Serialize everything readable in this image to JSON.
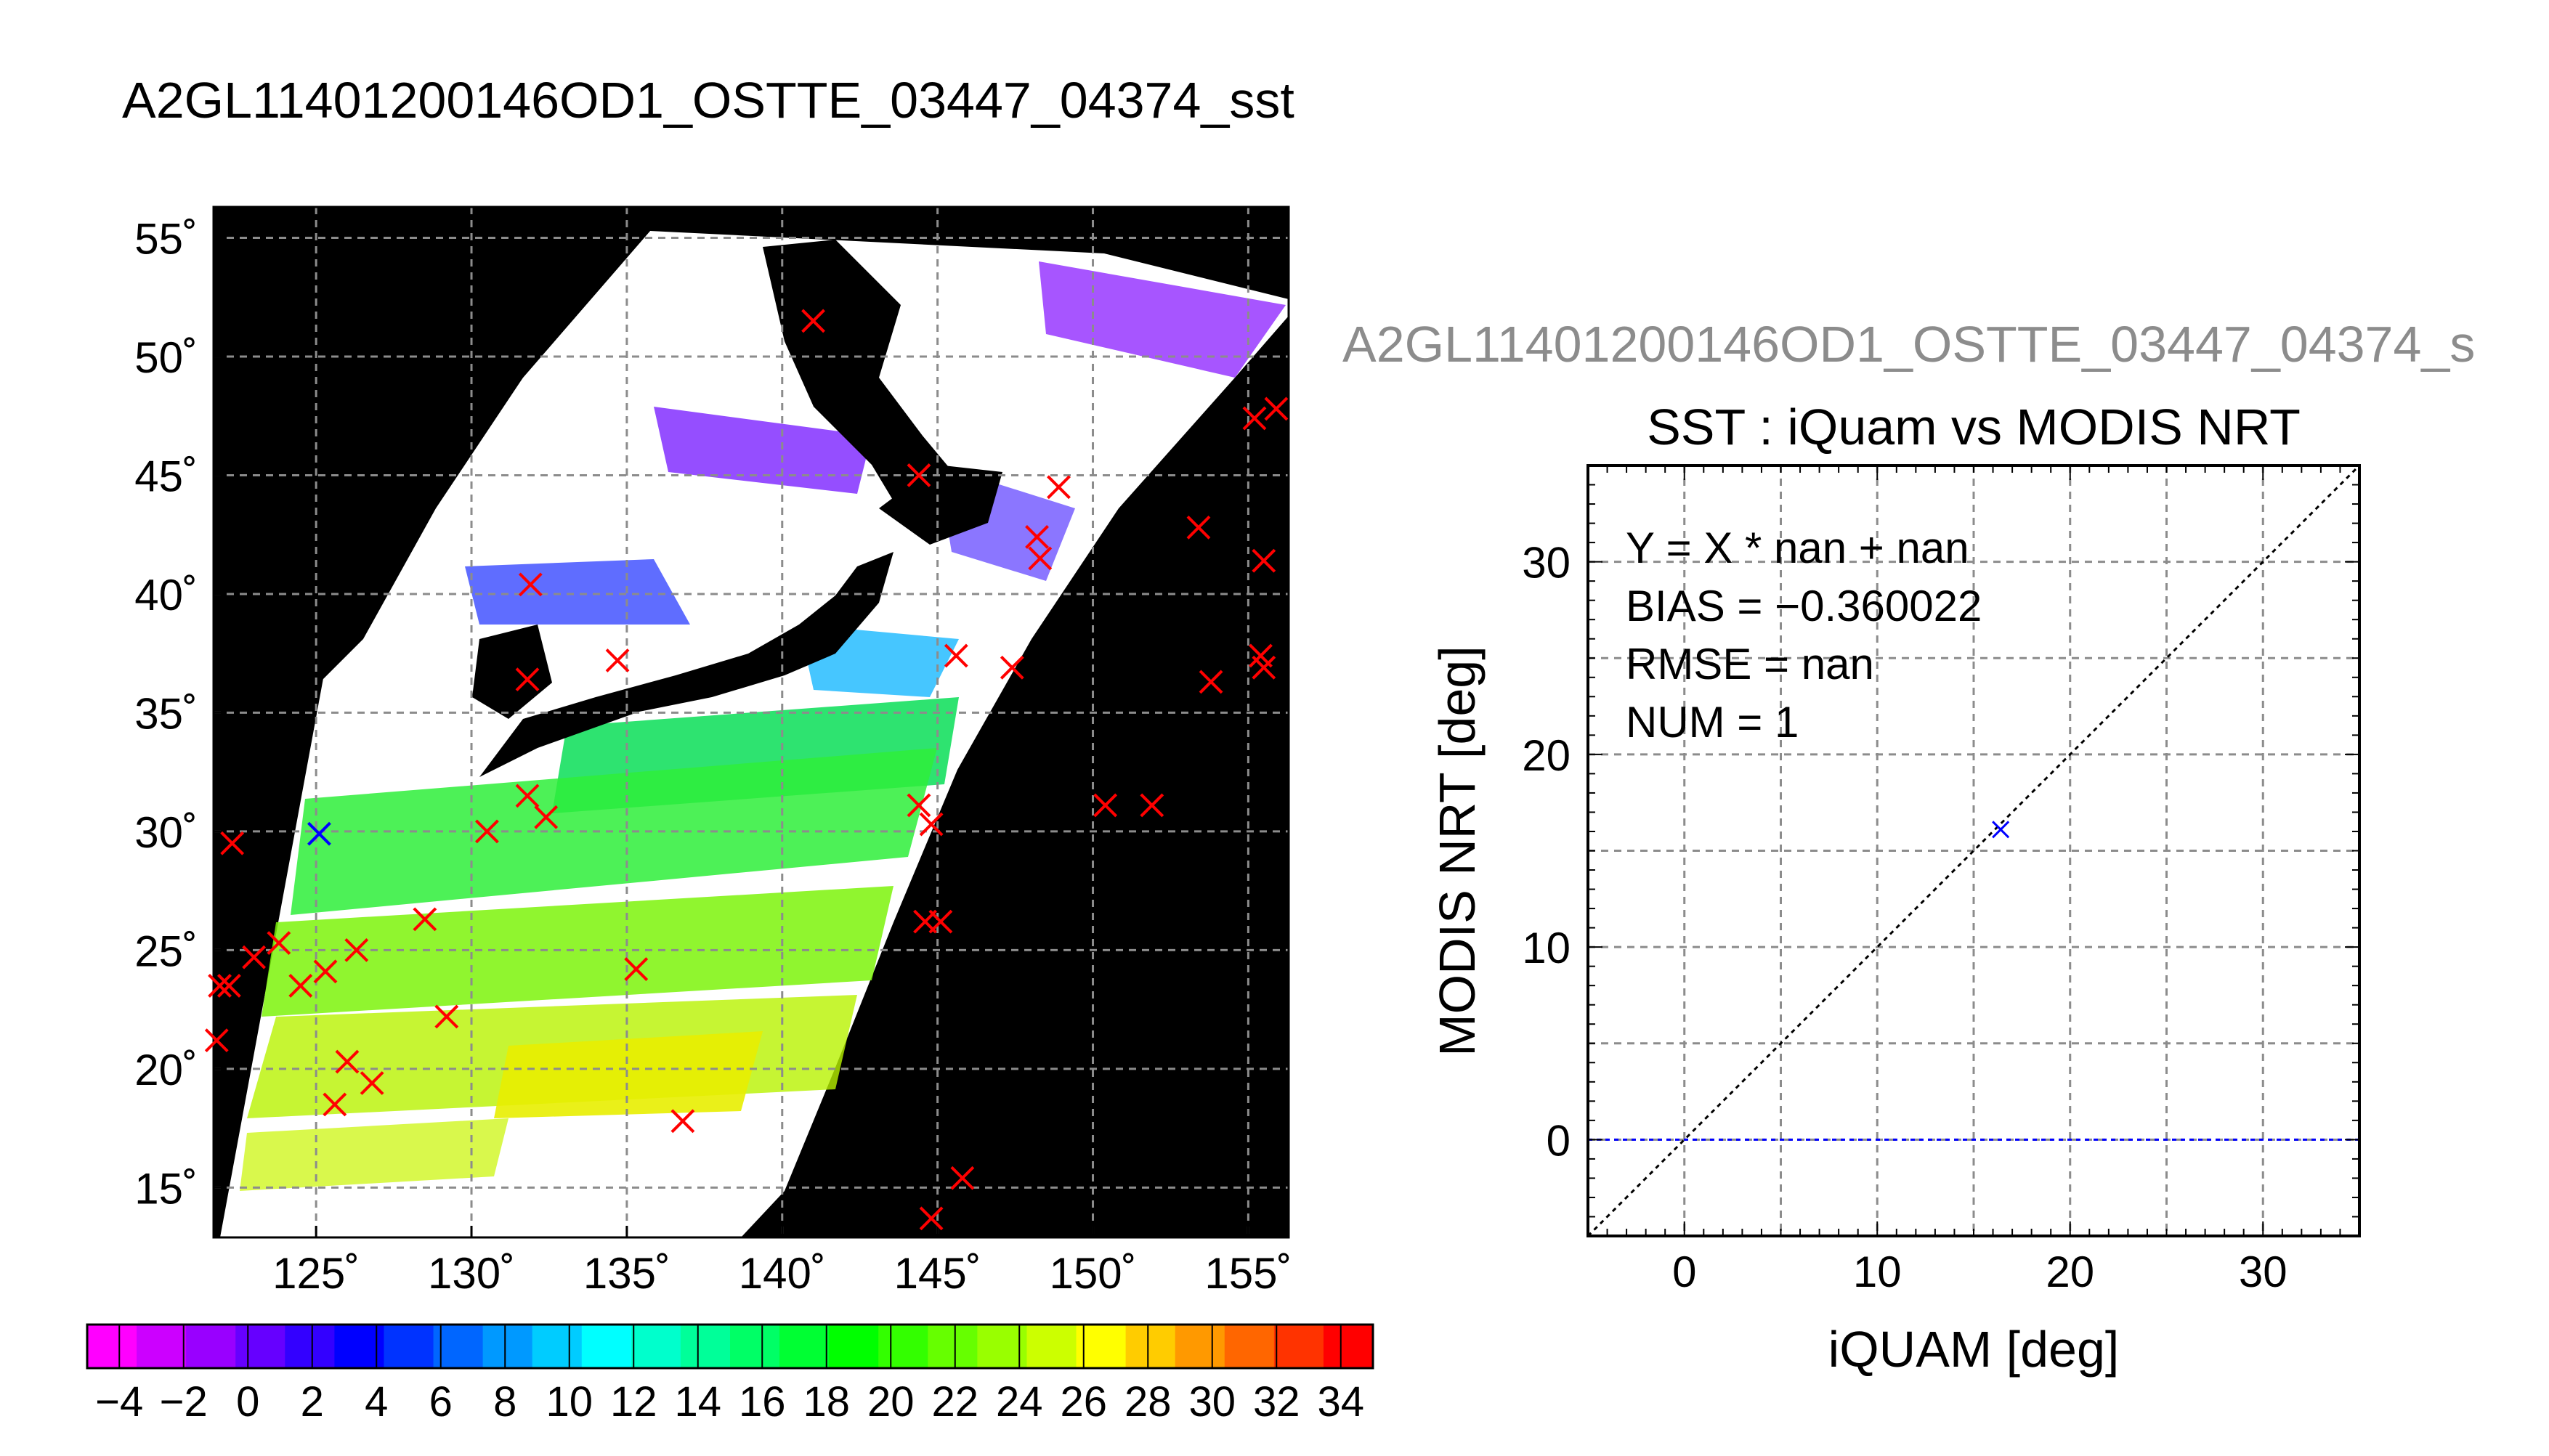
{
  "main_title": "A2GL11401200146OD1_OSTTE_03447_04374_sst",
  "map": {
    "lon_ticks": [
      125,
      130,
      135,
      140,
      145,
      150,
      155
    ],
    "lat_ticks": [
      15,
      20,
      25,
      30,
      35,
      40,
      45,
      50,
      55
    ],
    "lon_tick_labels": [
      "125˚",
      "130˚",
      "135˚",
      "140˚",
      "145˚",
      "150˚",
      "155˚"
    ],
    "lat_tick_labels": [
      "15˚",
      "20˚",
      "25˚",
      "30˚",
      "35˚",
      "40˚",
      "45˚",
      "50˚",
      "55˚"
    ],
    "lon_range": [
      121.7,
      156.3
    ],
    "lat_range": [
      12.9,
      56.3
    ],
    "buoy_markers": [
      {
        "lon": 141.0,
        "lat": 51.5,
        "color": "#ff0000"
      },
      {
        "lon": 144.4,
        "lat": 45.0,
        "color": "#ff0000"
      },
      {
        "lon": 148.9,
        "lat": 44.5,
        "color": "#ff0000"
      },
      {
        "lon": 148.2,
        "lat": 42.4,
        "color": "#ff0000"
      },
      {
        "lon": 148.3,
        "lat": 41.5,
        "color": "#ff0000"
      },
      {
        "lon": 131.9,
        "lat": 40.4,
        "color": "#ff0000"
      },
      {
        "lon": 134.7,
        "lat": 37.2,
        "color": "#ff0000"
      },
      {
        "lon": 131.8,
        "lat": 36.4,
        "color": "#ff0000"
      },
      {
        "lon": 145.6,
        "lat": 37.4,
        "color": "#ff0000"
      },
      {
        "lon": 147.4,
        "lat": 36.9,
        "color": "#ff0000"
      },
      {
        "lon": 153.4,
        "lat": 42.8,
        "color": "#ff0000"
      },
      {
        "lon": 155.2,
        "lat": 47.4,
        "color": "#ff0000"
      },
      {
        "lon": 155.9,
        "lat": 47.8,
        "color": "#ff0000"
      },
      {
        "lon": 155.5,
        "lat": 41.4,
        "color": "#ff0000"
      },
      {
        "lon": 155.4,
        "lat": 37.4,
        "color": "#ff0000"
      },
      {
        "lon": 155.5,
        "lat": 36.9,
        "color": "#ff0000"
      },
      {
        "lon": 153.8,
        "lat": 36.3,
        "color": "#ff0000"
      },
      {
        "lon": 131.8,
        "lat": 31.5,
        "color": "#ff0000"
      },
      {
        "lon": 132.4,
        "lat": 30.6,
        "color": "#ff0000"
      },
      {
        "lon": 130.5,
        "lat": 30.0,
        "color": "#ff0000"
      },
      {
        "lon": 144.4,
        "lat": 31.1,
        "color": "#ff0000"
      },
      {
        "lon": 144.8,
        "lat": 30.3,
        "color": "#ff0000"
      },
      {
        "lon": 150.4,
        "lat": 31.1,
        "color": "#ff0000"
      },
      {
        "lon": 151.9,
        "lat": 31.1,
        "color": "#ff0000"
      },
      {
        "lon": 122.3,
        "lat": 29.5,
        "color": "#ff0000"
      },
      {
        "lon": 144.6,
        "lat": 26.2,
        "color": "#ff0000"
      },
      {
        "lon": 145.1,
        "lat": 26.2,
        "color": "#ff0000"
      },
      {
        "lon": 128.5,
        "lat": 26.3,
        "color": "#ff0000"
      },
      {
        "lon": 126.3,
        "lat": 25.0,
        "color": "#ff0000"
      },
      {
        "lon": 123.8,
        "lat": 25.3,
        "color": "#ff0000"
      },
      {
        "lon": 123.0,
        "lat": 24.7,
        "color": "#ff0000"
      },
      {
        "lon": 125.3,
        "lat": 24.1,
        "color": "#ff0000"
      },
      {
        "lon": 124.5,
        "lat": 23.5,
        "color": "#ff0000"
      },
      {
        "lon": 122.2,
        "lat": 23.5,
        "color": "#ff0000"
      },
      {
        "lon": 121.9,
        "lat": 23.5,
        "color": "#ff0000"
      },
      {
        "lon": 135.3,
        "lat": 24.2,
        "color": "#ff0000"
      },
      {
        "lon": 129.2,
        "lat": 22.2,
        "color": "#ff0000"
      },
      {
        "lon": 121.8,
        "lat": 21.2,
        "color": "#ff0000"
      },
      {
        "lon": 126.0,
        "lat": 20.3,
        "color": "#ff0000"
      },
      {
        "lon": 126.8,
        "lat": 19.4,
        "color": "#ff0000"
      },
      {
        "lon": 125.6,
        "lat": 18.5,
        "color": "#ff0000"
      },
      {
        "lon": 136.8,
        "lat": 17.8,
        "color": "#ff0000"
      },
      {
        "lon": 145.8,
        "lat": 15.4,
        "color": "#ff0000"
      },
      {
        "lon": 144.8,
        "lat": 13.7,
        "color": "#ff0000"
      },
      {
        "lon": 125.1,
        "lat": 29.9,
        "color": "#0000ff"
      }
    ]
  },
  "colorbar": {
    "min": -5,
    "max": 35,
    "tick_values": [
      -4,
      -2,
      0,
      2,
      4,
      6,
      8,
      10,
      12,
      14,
      16,
      18,
      20,
      22,
      24,
      26,
      28,
      30,
      32,
      34
    ],
    "tick_labels": [
      "−4",
      "−2",
      "0",
      "2",
      "4",
      "6",
      "8",
      "10",
      "12",
      "14",
      "16",
      "18",
      "20",
      "22",
      "24",
      "26",
      "28",
      "30",
      "32",
      "34"
    ],
    "colors": [
      "#ff00ff",
      "#cc00ff",
      "#9900ff",
      "#6600ff",
      "#3300ff",
      "#0000ff",
      "#0033ff",
      "#0066ff",
      "#0099ff",
      "#00ccff",
      "#00ffff",
      "#00ffcc",
      "#00ff99",
      "#00ff66",
      "#00ff33",
      "#00ff00",
      "#33ff00",
      "#66ff00",
      "#99ff00",
      "#ccff00",
      "#ffff00",
      "#ffcc00",
      "#ff9900",
      "#ff6600",
      "#ff3300",
      "#ff0000"
    ]
  },
  "scatter_header": "A2GL11401200146OD1_OSTTE_03447_04374_s",
  "chart_data": {
    "type": "scatter",
    "title": "SST : iQuam vs MODIS NRT",
    "xlabel": "iQUAM [deg]",
    "ylabel": "MODIS NRT [deg]",
    "xlim": [
      -5,
      35
    ],
    "ylim": [
      -5,
      35
    ],
    "x_ticks": [
      0,
      10,
      20,
      30
    ],
    "y_ticks": [
      0,
      10,
      20,
      30
    ],
    "grid": true,
    "points": [
      {
        "x": 16.4,
        "y": 16.1
      }
    ],
    "reference_lines": [
      {
        "kind": "identity",
        "style": "dotted",
        "color": "#000000"
      },
      {
        "kind": "horizontal",
        "y": 0,
        "style": "dotted",
        "color": "#0000ff"
      }
    ],
    "annotations": [
      "Y = X * nan + nan",
      "BIAS = −0.360022",
      "RMSE = nan",
      "NUM = 1"
    ]
  }
}
